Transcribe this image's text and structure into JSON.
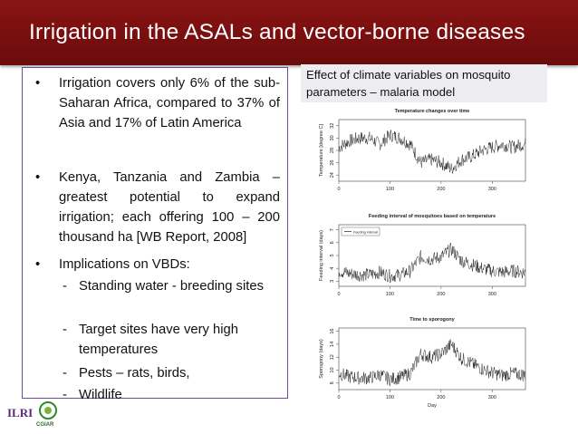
{
  "slide": {
    "title": "Irrigation in the ASALs and vector-borne diseases",
    "bullets": [
      "Irrigation covers only 6% of the sub-Saharan Africa, compared to 37% of Asia and 17% of Latin America",
      "Kenya, Tanzania and Zambia – greatest potential to expand irrigation; each offering 100 – 200 thousand ha [WB Report, 2008]",
      "Implications on VBDs:"
    ],
    "sub_bullets": [
      "Standing water - breeding sites",
      "Target sites have very high temperatures",
      "Pests – rats, birds,",
      "Wildlife"
    ],
    "caption": "Effect of climate variables on mosquito parameters – malaria model",
    "logos": {
      "left": "ILRI",
      "right": "CGIAR"
    },
    "colors": {
      "header": "#7a1010",
      "box_border": "#6f4aa0",
      "caption_bg": "#ececf1"
    }
  },
  "chart_data": [
    {
      "type": "line",
      "title": "Temperature changes over time",
      "ylabel": "Temperature [degree C]",
      "xlabel": "",
      "x_ticks": [
        0,
        100,
        200,
        300
      ],
      "y_ticks": [
        24,
        26,
        28,
        30,
        32
      ],
      "xlim": [
        0,
        365
      ],
      "ylim": [
        23,
        33
      ],
      "x": [
        0,
        20,
        40,
        60,
        80,
        100,
        120,
        140,
        160,
        180,
        200,
        220,
        240,
        260,
        280,
        300,
        320,
        340,
        360
      ],
      "values": [
        28.5,
        29.5,
        30,
        30,
        29,
        30.5,
        30,
        29,
        26,
        26.5,
        26,
        25,
        26.5,
        27,
        28,
        28.5,
        29,
        28.5,
        29
      ]
    },
    {
      "type": "line",
      "title": "Feeding interval of mosquitoes based on temperature",
      "ylabel": "Feeding interval (days)",
      "xlabel": "",
      "legend": [
        "Feeding interval"
      ],
      "x_ticks": [
        0,
        100,
        200,
        300
      ],
      "y_ticks": [
        3,
        4,
        5,
        6,
        7
      ],
      "xlim": [
        0,
        365
      ],
      "ylim": [
        2.6,
        7.4
      ],
      "x": [
        0,
        20,
        40,
        60,
        80,
        100,
        120,
        140,
        160,
        180,
        200,
        220,
        240,
        260,
        280,
        300,
        320,
        340,
        360
      ],
      "values": [
        3.8,
        3.6,
        3.5,
        3.5,
        3.7,
        3.4,
        3.5,
        3.8,
        4.9,
        4.7,
        4.9,
        5.5,
        4.6,
        4.3,
        4.0,
        3.8,
        3.7,
        3.8,
        3.7
      ]
    },
    {
      "type": "line",
      "title": "Time to sporogony",
      "ylabel": "Sporogony (days)",
      "xlabel": "Day",
      "x_ticks": [
        0,
        100,
        200,
        300
      ],
      "y_ticks": [
        8,
        10,
        12,
        14,
        16
      ],
      "xlim": [
        0,
        365
      ],
      "ylim": [
        7,
        16.5
      ],
      "x": [
        0,
        20,
        40,
        60,
        80,
        100,
        120,
        140,
        160,
        180,
        200,
        220,
        240,
        260,
        280,
        300,
        320,
        340,
        360
      ],
      "values": [
        9.5,
        9,
        8.8,
        8.8,
        9.3,
        8.6,
        8.9,
        9.5,
        12.5,
        12,
        12.5,
        14,
        11.8,
        11,
        10.2,
        9.6,
        9.2,
        9.5,
        9.3
      ]
    }
  ]
}
